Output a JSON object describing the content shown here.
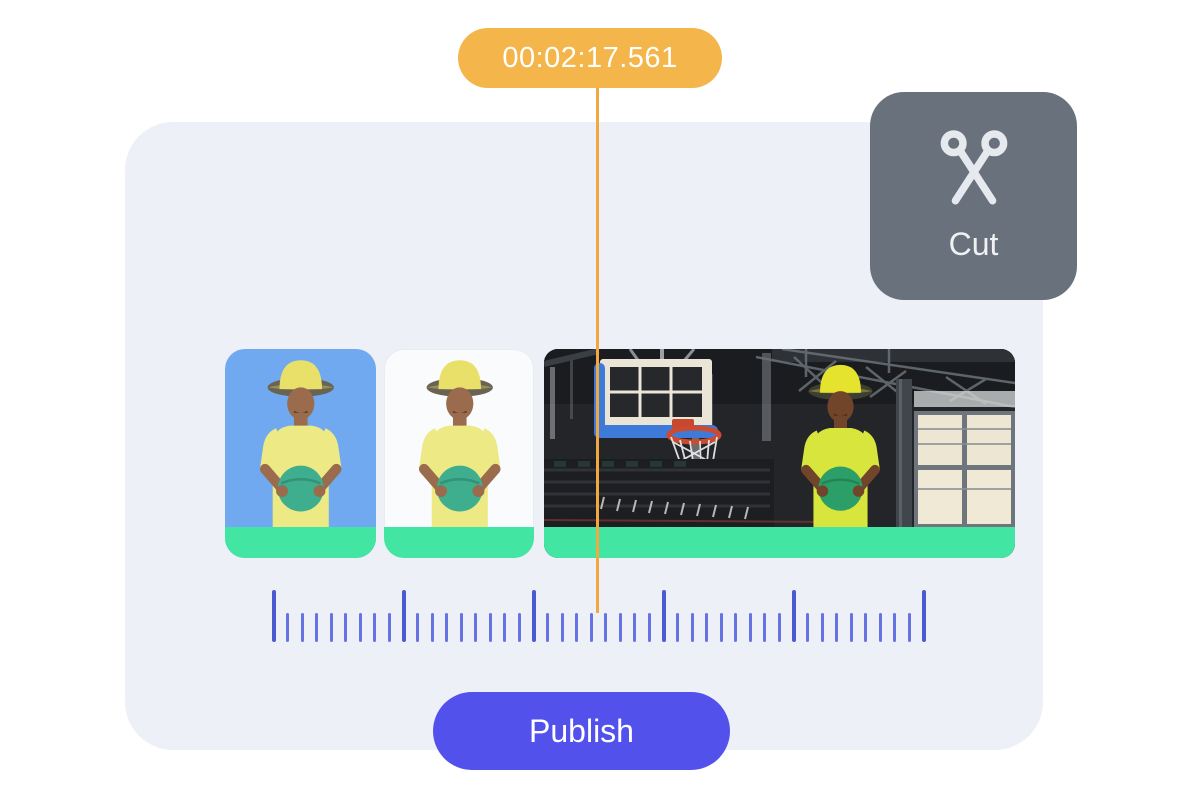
{
  "timeline": {
    "timestamp": "00:02:17.561",
    "ruler": {
      "major_tick_count": 6,
      "minor_ticks_between": 8,
      "total_ticks": 46
    }
  },
  "toolbar": {
    "cut_label": "Cut",
    "cut_icon": "scissors-icon"
  },
  "actions": {
    "publish_label": "Publish"
  },
  "clips": [
    {
      "id": "clip-1",
      "description": "man in yellow bucket hat and yellow shirt holding green ball, blue background"
    },
    {
      "id": "clip-2",
      "description": "man in yellow bucket hat and yellow shirt holding green ball, white background"
    },
    {
      "id": "clip-3",
      "description": "man holding green ball in basketball gym beside hoop and window wall"
    }
  ],
  "colors": {
    "accent_orange": "#F4B54A",
    "playhead_orange": "#F0A844",
    "publish_indigo": "#5351EC",
    "cut_slate": "#68717C",
    "clip_green": "#42E5A2",
    "clip_blue": "#70A9F0",
    "tick_blue": "#6673E2",
    "tick_blue_major": "#4C5AD2",
    "panel_bg": "#EDF1F7"
  }
}
